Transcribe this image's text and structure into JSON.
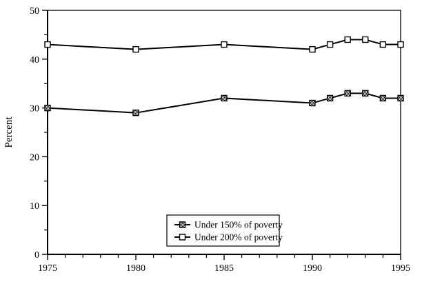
{
  "chart_data": {
    "type": "line",
    "title": "",
    "xlabel": "",
    "ylabel": "Percent",
    "x": [
      1975,
      1980,
      1985,
      1990,
      1991,
      1992,
      1993,
      1994,
      1995
    ],
    "series": [
      {
        "name": "Under 150% of poverty",
        "marker": "hatched-square",
        "values": [
          30,
          29,
          32,
          31,
          32,
          33,
          33,
          32,
          32
        ]
      },
      {
        "name": "Under 200% of poverty",
        "marker": "open-square",
        "values": [
          43,
          42,
          43,
          42,
          43,
          44,
          44,
          43,
          43
        ]
      }
    ],
    "xlim": [
      1975,
      1995
    ],
    "ylim": [
      0,
      50
    ],
    "x_major_ticks": [
      1975,
      1980,
      1985,
      1990,
      1995
    ],
    "x_minor_step": 1,
    "y_major_ticks": [
      0,
      10,
      20,
      30,
      40,
      50
    ],
    "y_minor_step": 5,
    "grid": false,
    "legend_position": "inside-bottom-center",
    "colors": {
      "line": "#000000",
      "axis": "#000000",
      "marker_open_fill": "#ffffff",
      "background": "#ffffff"
    }
  }
}
